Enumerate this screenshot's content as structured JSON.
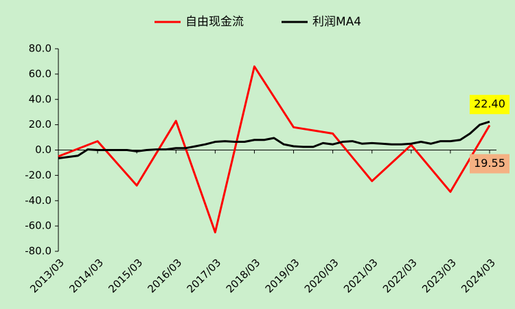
{
  "chart_data": {
    "type": "line",
    "categories": [
      "2013/03",
      null,
      null,
      null,
      "2014/03",
      null,
      null,
      null,
      "2015/03",
      null,
      null,
      null,
      "2016/03",
      null,
      null,
      null,
      "2017/03",
      null,
      null,
      null,
      "2018/03",
      null,
      null,
      null,
      "2019/03",
      null,
      null,
      null,
      "2020/03",
      null,
      null,
      null,
      "2021/03",
      null,
      null,
      null,
      "2022/03",
      null,
      null,
      null,
      "2023/03",
      null,
      null,
      null,
      "2024/03"
    ],
    "series": [
      {
        "name": "自由现金流",
        "color": "#ff0000",
        "label_color": "#f4b183",
        "x": [
          "2013/03",
          "2014/03",
          "2015/03",
          "2016/03",
          "2017/03",
          "2018/03",
          "2019/03",
          "2020/03",
          "2021/03",
          "2022/03",
          "2023/03",
          "2024/03"
        ],
        "values": [
          -5,
          7,
          -28,
          23,
          -65,
          66,
          18,
          13,
          -24.5,
          4,
          -33,
          19.55
        ],
        "value_labels": [
          null,
          null,
          null,
          null,
          null,
          null,
          null,
          null,
          null,
          null,
          null,
          "19.55"
        ]
      },
      {
        "name": "利润MA4",
        "color": "#000000",
        "label_color": "#ffff00",
        "values": [
          -6.5,
          -5.5,
          -4.5,
          0.5,
          0,
          0,
          0,
          0,
          -1,
          0,
          0.5,
          0.5,
          1.5,
          1.5,
          3,
          4.5,
          6.5,
          7,
          6.5,
          6.5,
          8,
          8,
          9.5,
          4.5,
          3,
          2.5,
          2.5,
          5.5,
          4.5,
          6.5,
          7,
          5,
          5.5,
          5,
          4.5,
          4.5,
          5,
          6.5,
          5,
          7,
          7,
          8,
          13,
          20,
          22.4
        ],
        "value_labels": [
          null,
          null,
          null,
          null,
          null,
          null,
          null,
          null,
          null,
          null,
          null,
          null,
          null,
          null,
          null,
          null,
          null,
          null,
          null,
          null,
          null,
          null,
          null,
          null,
          null,
          null,
          null,
          null,
          null,
          null,
          null,
          null,
          null,
          null,
          null,
          null,
          null,
          null,
          null,
          null,
          null,
          null,
          null,
          null,
          "22.40"
        ]
      }
    ],
    "ylim": [
      -80,
      80
    ],
    "yticks": [
      {
        "value": -80,
        "label": "-80.0"
      },
      {
        "value": -60,
        "label": "-60.0"
      },
      {
        "value": -40,
        "label": "-40.0"
      },
      {
        "value": -20,
        "label": "-20.0"
      },
      {
        "value": 0,
        "label": "0.0"
      },
      {
        "value": 20,
        "label": "20.0"
      },
      {
        "value": 40,
        "label": "40.0"
      },
      {
        "value": 60,
        "label": "60.0"
      },
      {
        "value": 80,
        "label": "80.0"
      }
    ],
    "legend": "top",
    "grid": false
  }
}
